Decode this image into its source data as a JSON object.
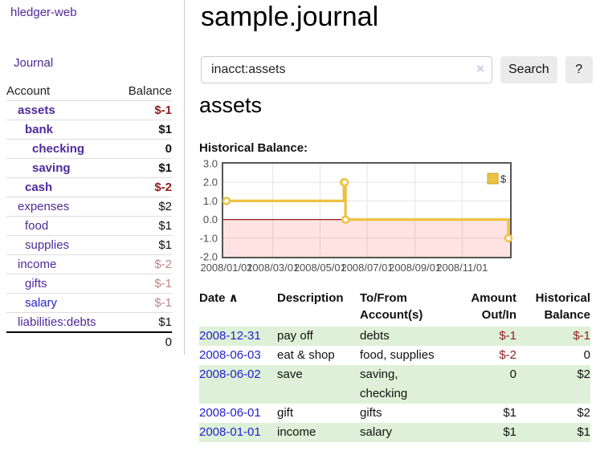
{
  "colors": {
    "purple": "#4e2a9a",
    "link_blue": "#2222cc",
    "neg_strong": "#8f1d1d",
    "neg_soft": "#c08585",
    "row_green": "#dff0d8",
    "button_bg": "#ebebeb",
    "input_border": "#cccccc",
    "clear_icon": "#cfc4e6",
    "divider": "#cccccc",
    "muted_axis": "#4d4d4d",
    "chart_line": "#edc240",
    "chart_line_border": "#c7a22c",
    "chart_grid": "#e3e3e3",
    "chart_border": "#545454",
    "chart_zero": "#9c1b1b",
    "chart_neg_fill": "rgba(255,0,0,0.11)"
  },
  "sidebar": {
    "brand": "hledger-web",
    "nav": [
      {
        "label": "Journal"
      }
    ],
    "accounts_table": {
      "headers": [
        "Account",
        "Balance"
      ],
      "rows": [
        {
          "account": "assets",
          "balance": "$-1",
          "level": 1,
          "emph": true
        },
        {
          "account": "bank",
          "balance": "$1",
          "level": 2,
          "emph": true
        },
        {
          "account": "checking",
          "balance": "0",
          "level": 3,
          "emph": true
        },
        {
          "account": "saving",
          "balance": "$1",
          "level": 3,
          "emph": true
        },
        {
          "account": "cash",
          "balance": "$-2",
          "level": 2,
          "emph": true
        },
        {
          "account": "expenses",
          "balance": "$2",
          "level": 1,
          "emph": false
        },
        {
          "account": "food",
          "balance": "$1",
          "level": 2,
          "emph": false
        },
        {
          "account": "supplies",
          "balance": "$1",
          "level": 2,
          "emph": false
        },
        {
          "account": "income",
          "balance": "$-2",
          "level": 1,
          "emph": false
        },
        {
          "account": "gifts",
          "balance": "$-1",
          "level": 2,
          "emph": false
        },
        {
          "account": "salary",
          "balance": "$-1",
          "level": 2,
          "emph": false,
          "link_color": "blue"
        },
        {
          "account": "liabilities:debts",
          "balance": "$1",
          "level": 1,
          "emph": false
        }
      ],
      "total": "0"
    }
  },
  "header": {
    "title": "sample.journal"
  },
  "search": {
    "value": "inacct:assets",
    "clear_icon": "×",
    "button": "Search",
    "help": "?"
  },
  "account_page": {
    "heading": "assets",
    "chart_label": "Historical Balance:"
  },
  "chart_data": {
    "type": "line",
    "step": true,
    "title": "Historical Balance:",
    "xlabel": "",
    "ylabel": "",
    "ylim": [
      -2,
      3
    ],
    "y_ticks": [
      3,
      2,
      1,
      0,
      -1,
      -2
    ],
    "x_range": [
      "2008-01-01",
      "2008-12-31"
    ],
    "x_ticks": [
      {
        "label": "2008/01/01",
        "date": "2008-01-01"
      },
      {
        "label": "2008/03/01",
        "date": "2008-03-01"
      },
      {
        "label": "2008/05/01",
        "date": "2008-05-01"
      },
      {
        "label": "2008/07/01",
        "date": "2008-07-01"
      },
      {
        "label": "2008/09/01",
        "date": "2008-09-01"
      },
      {
        "label": "2008/11/01",
        "date": "2008-11-01"
      }
    ],
    "series": [
      {
        "name": "$",
        "points": [
          [
            "2008-01-01",
            1
          ],
          [
            "2008-06-01",
            2
          ],
          [
            "2008-06-02",
            2
          ],
          [
            "2008-06-03",
            0
          ],
          [
            "2008-12-31",
            -1
          ]
        ]
      }
    ],
    "legend": {
      "label": "$",
      "position": "top-right"
    },
    "grid": true,
    "negative_region_shaded": true
  },
  "register_table": {
    "headers": [
      {
        "label": "Date",
        "sort": "∧",
        "align": "left",
        "sortable": true
      },
      {
        "label": "Description",
        "align": "left"
      },
      {
        "label": "To/From\nAccount(s)",
        "align": "left"
      },
      {
        "label": "Amount\nOut/In",
        "align": "right"
      },
      {
        "label": "Historical\nBalance",
        "align": "right"
      }
    ],
    "rows": [
      {
        "date": "2008-12-31",
        "description": "pay off",
        "accounts": "debts",
        "amount": "$-1",
        "balance": "$-1",
        "highlight": true
      },
      {
        "date": "2008-06-03",
        "description": "eat & shop",
        "accounts": "food, supplies",
        "amount": "$-2",
        "balance": "0",
        "highlight": false
      },
      {
        "date": "2008-06-02",
        "description": "save",
        "accounts": "saving,\nchecking",
        "amount": "0",
        "balance": "$2",
        "highlight": true
      },
      {
        "date": "2008-06-01",
        "description": "gift",
        "accounts": "gifts",
        "amount": "$1",
        "balance": "$2",
        "highlight": false
      },
      {
        "date": "2008-01-01",
        "description": "income",
        "accounts": "salary",
        "amount": "$1",
        "balance": "$1",
        "highlight": true
      }
    ]
  }
}
